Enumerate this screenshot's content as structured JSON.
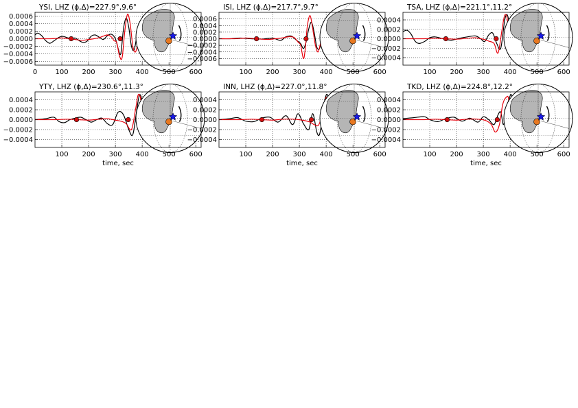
{
  "chart_data": [
    {
      "type": "line",
      "title": "YSI, LHZ (ϕ,Δ)=227.9°,9.6°",
      "xlabel": "",
      "ylabel": "",
      "xlim": [
        0,
        620
      ],
      "ylim": [
        -0.0007,
        0.0007
      ],
      "xticks": [
        0,
        100,
        200,
        300,
        400,
        500,
        600
      ],
      "yticks": [
        -0.0006,
        -0.0004,
        -0.0002,
        0.0,
        0.0002,
        0.0004,
        0.0006
      ],
      "grid": true,
      "series": [
        {
          "color": "#000000",
          "x": [
            0,
            10,
            25,
            40,
            55,
            70,
            90,
            105,
            120,
            135,
            150,
            165,
            180,
            195,
            210,
            225,
            240,
            255,
            270,
            285,
            300,
            310,
            320,
            330,
            340,
            350,
            360,
            370,
            380,
            390,
            400,
            410,
            420,
            430
          ],
          "y": [
            0.0001,
            0.00015,
            8e-05,
            -5e-05,
            -0.00012,
            -6e-05,
            4e-05,
            6e-05,
            3e-05,
            0.0,
            2e-05,
            -5e-05,
            -0.0001,
            -6e-05,
            7e-05,
            0.0001,
            4e-05,
            -2e-05,
            8e-05,
            0.00012,
            0.0,
            -0.00025,
            -0.0004,
            0.00025,
            0.00055,
            0.0003,
            -0.0002,
            -0.0003,
            5e-05,
            0.00015,
            0.0,
            -5e-05,
            2e-05,
            0.0
          ]
        },
        {
          "color": "#e8000b",
          "x": [
            0,
            60,
            100,
            130,
            150,
            175,
            200,
            220,
            240,
            255,
            270,
            285,
            295,
            305,
            315,
            325,
            335,
            345,
            355,
            365,
            375,
            385,
            395,
            405,
            420,
            430
          ],
          "y": [
            0.0,
            0.0,
            2e-05,
            0.0,
            -2e-05,
            -4e-05,
            -2e-05,
            0.0,
            3e-05,
            7e-05,
            0.0001,
            5e-05,
            -5e-05,
            -0.0001,
            -0.00045,
            -0.0005,
            0.0002,
            0.00065,
            0.0004,
            -0.0002,
            -0.00035,
            -0.0001,
            0.0001,
            5e-05,
            0.0,
            0.0
          ]
        }
      ],
      "markers": [
        {
          "x": 135,
          "y": 0.0
        },
        {
          "x": 318,
          "y": 0.0
        }
      ]
    },
    {
      "type": "line",
      "title": "ISI, LHZ (ϕ,Δ)=217.7°,9.7°",
      "xlabel": "",
      "ylabel": "",
      "xlim": [
        0,
        620
      ],
      "ylim": [
        -0.0008,
        0.0008
      ],
      "xticks": [
        100,
        200,
        300,
        400,
        500,
        600
      ],
      "yticks": [
        -0.0006,
        -0.0004,
        -0.0002,
        0.0,
        0.0002,
        0.0004,
        0.0006
      ],
      "grid": true,
      "series": [
        {
          "color": "#000000",
          "x": [
            0,
            40,
            80,
            120,
            160,
            200,
            230,
            250,
            270,
            290,
            305,
            315,
            325,
            335,
            345,
            355,
            365,
            375,
            385,
            395,
            410,
            430
          ],
          "y": [
            0.0,
            0.0,
            2e-05,
            0.0,
            -1e-05,
            2e-05,
            -5e-05,
            6e-05,
            8e-05,
            -5e-05,
            -0.00015,
            -0.0003,
            -0.0001,
            0.0003,
            0.0005,
            0.0002,
            -0.00025,
            -0.0003,
            0.0,
            0.00012,
            0.0,
            0.0
          ]
        },
        {
          "color": "#e8000b",
          "x": [
            0,
            60,
            100,
            140,
            180,
            210,
            240,
            260,
            280,
            295,
            305,
            315,
            322,
            330,
            340,
            350,
            360,
            370,
            380,
            390,
            400,
            415,
            430
          ],
          "y": [
            0.0,
            0.0,
            2e-05,
            0.0,
            -2e-05,
            0.0,
            3e-05,
            6e-05,
            4e-05,
            -0.0001,
            -0.0002,
            -0.0006,
            -0.0003,
            0.0004,
            0.0007,
            0.0003,
            -0.0002,
            -0.0004,
            -0.0001,
            0.00015,
            0.0001,
            0.0,
            0.0
          ]
        }
      ],
      "markers": [
        {
          "x": 140,
          "y": 0.0
        },
        {
          "x": 325,
          "y": 0.0
        }
      ]
    },
    {
      "type": "line",
      "title": "TSA, LHZ (ϕ,Δ)=221.1°,11.2°",
      "xlabel": "",
      "ylabel": "",
      "xlim": [
        0,
        620
      ],
      "ylim": [
        -0.00056,
        0.00056
      ],
      "xticks": [
        100,
        200,
        300,
        400,
        500,
        600
      ],
      "yticks": [
        -0.0004,
        -0.0002,
        0.0,
        0.0002,
        0.0004
      ],
      "grid": true,
      "series": [
        {
          "color": "#000000",
          "x": [
            0,
            15,
            30,
            45,
            60,
            80,
            100,
            120,
            150,
            180,
            210,
            240,
            270,
            290,
            305,
            320,
            335,
            350,
            365,
            380,
            390,
            400,
            410,
            420,
            430,
            440
          ],
          "y": [
            0.00015,
            0.00018,
            0.0001,
            -5e-05,
            -0.0001,
            -6e-05,
            2e-05,
            4e-05,
            0.0,
            -3e-05,
            1e-05,
            4e-05,
            6e-05,
            0.0,
            -6e-05,
            8e-05,
            0.00012,
            -0.0001,
            -0.0002,
            0.0004,
            0.0005,
            0.0002,
            -0.0003,
            -0.0002,
            0.0001,
            0.0
          ]
        },
        {
          "color": "#e8000b",
          "x": [
            0,
            80,
            120,
            160,
            200,
            240,
            270,
            300,
            320,
            340,
            355,
            370,
            380,
            390,
            400,
            410,
            420,
            430,
            440
          ],
          "y": [
            0.0,
            0.0,
            1e-05,
            0.0,
            -1e-05,
            1e-05,
            2e-05,
            -1e-05,
            -5e-05,
            -0.0001,
            -0.0003,
            0.0002,
            0.0005,
            0.0004,
            -0.0002,
            -0.0004,
            -0.0001,
            0.0001,
            0.0
          ]
        }
      ],
      "markers": [
        {
          "x": 160,
          "y": 0.0
        },
        {
          "x": 348,
          "y": 0.0
        }
      ]
    },
    {
      "type": "line",
      "title": "YTY, LHZ (ϕ,Δ)=230.6°,11.3°",
      "xlabel": "time, sec",
      "ylabel": "",
      "xlim": [
        0,
        620
      ],
      "ylim": [
        -0.00056,
        0.00056
      ],
      "xticks": [
        100,
        200,
        300,
        400,
        500,
        600
      ],
      "yticks": [
        -0.0004,
        -0.0002,
        0.0,
        0.0002,
        0.0004
      ],
      "grid": true,
      "series": [
        {
          "color": "#000000",
          "x": [
            0,
            40,
            70,
            90,
            110,
            130,
            150,
            170,
            190,
            210,
            230,
            250,
            270,
            290,
            310,
            330,
            350,
            365,
            380,
            390,
            400,
            410,
            420,
            430,
            440,
            450
          ],
          "y": [
            0.0,
            2e-05,
            5e-05,
            -4e-05,
            -6e-05,
            0.0,
            3e-05,
            5e-05,
            0.0,
            -5e-05,
            0.0,
            3e-05,
            -8e-05,
            -0.0001,
            0.00015,
            0.0001,
            -0.0002,
            -0.0003,
            0.0002,
            0.0005,
            0.00035,
            -0.0002,
            -0.0003,
            0.0,
            0.0001,
            0.0
          ]
        },
        {
          "color": "#e8000b",
          "x": [
            0,
            80,
            120,
            160,
            200,
            240,
            270,
            300,
            320,
            340,
            360,
            375,
            385,
            395,
            405,
            415,
            425,
            440,
            450
          ],
          "y": [
            0.0,
            0.0,
            1e-05,
            0.0,
            -1e-05,
            1e-05,
            2e-05,
            -1e-05,
            -3e-05,
            -8e-05,
            -0.0002,
            0.0002,
            0.0005,
            0.0004,
            -0.0001,
            -0.0004,
            -0.0003,
            0.0001,
            0.0
          ]
        }
      ],
      "markers": [
        {
          "x": 155,
          "y": 0.0
        },
        {
          "x": 348,
          "y": 0.0
        }
      ]
    },
    {
      "type": "line",
      "title": "INN, LHZ (ϕ,Δ)=227.0°,11.8°",
      "xlabel": "time, sec",
      "ylabel": "",
      "xlim": [
        0,
        620
      ],
      "ylim": [
        -0.00056,
        0.00056
      ],
      "xticks": [
        100,
        200,
        300,
        400,
        500,
        600
      ],
      "yticks": [
        -0.0004,
        -0.0002,
        0.0,
        0.0002,
        0.0004
      ],
      "grid": true,
      "series": [
        {
          "color": "#000000",
          "x": [
            0,
            40,
            70,
            100,
            130,
            160,
            190,
            220,
            250,
            275,
            295,
            315,
            335,
            350,
            365,
            375,
            385,
            395,
            405,
            415,
            425,
            435,
            445,
            455
          ],
          "y": [
            0.0,
            2e-05,
            4e-05,
            -3e-05,
            -4e-05,
            3e-05,
            5e-05,
            -5e-05,
            8e-05,
            -0.0001,
            0.00012,
            -8e-05,
            -0.0002,
            0.00012,
            -0.00025,
            -0.0003,
            0.0,
            0.0004,
            0.0005,
            0.0002,
            -0.0002,
            -0.00025,
            0.0,
            0.0
          ]
        },
        {
          "color": "#e8000b",
          "x": [
            0,
            80,
            120,
            160,
            200,
            240,
            280,
            320,
            340,
            355,
            370,
            380,
            390,
            400,
            410,
            420,
            430,
            445,
            455
          ],
          "y": [
            0.0,
            0.0,
            1e-05,
            0.0,
            -1e-05,
            1e-05,
            1e-05,
            -2e-05,
            -5e-05,
            -0.0001,
            -0.00012,
            0.0,
            0.0002,
            0.00045,
            0.0003,
            -0.0003,
            -0.0004,
            0.0,
            0.0
          ]
        }
      ],
      "markers": [
        {
          "x": 160,
          "y": 0.0
        },
        {
          "x": 345,
          "y": 0.0
        }
      ]
    },
    {
      "type": "line",
      "title": "TKD, LHZ (ϕ,Δ)=224.8°,12.2°",
      "xlabel": "time, sec",
      "ylabel": "",
      "xlim": [
        0,
        620
      ],
      "ylim": [
        -0.00056,
        0.00056
      ],
      "xticks": [
        100,
        200,
        300,
        400,
        500,
        600
      ],
      "yticks": [
        -0.0004,
        -0.0002,
        0.0,
        0.0002,
        0.0004
      ],
      "grid": true,
      "series": [
        {
          "color": "#000000",
          "x": [
            0,
            40,
            80,
            100,
            130,
            160,
            190,
            220,
            250,
            280,
            300,
            320,
            340,
            355,
            365,
            375,
            385,
            395,
            405,
            415,
            425,
            435,
            445,
            455
          ],
          "y": [
            2e-05,
            4e-05,
            6e-05,
            0.0,
            -4e-05,
            2e-05,
            5e-05,
            -3e-05,
            3e-05,
            -5e-05,
            6e-05,
            0.0,
            -0.0001,
            0.0001,
            0.00015,
            -0.0001,
            0.00018,
            0.0004,
            0.0005,
            0.0002,
            -0.0002,
            -0.00015,
            0.0,
            0.0
          ]
        },
        {
          "color": "#e8000b",
          "x": [
            0,
            80,
            120,
            160,
            200,
            240,
            280,
            310,
            330,
            345,
            360,
            372,
            385,
            395,
            405,
            415,
            425,
            440,
            455
          ],
          "y": [
            0.0,
            0.0,
            1e-05,
            0.0,
            -1e-05,
            1e-05,
            1e-05,
            -2e-05,
            -0.0001,
            -0.00025,
            -0.0001,
            0.0003,
            0.00045,
            0.0004,
            -0.0002,
            -0.0004,
            -0.0002,
            0.0001,
            0.0
          ]
        }
      ],
      "markers": [
        {
          "x": 165,
          "y": 0.0
        },
        {
          "x": 352,
          "y": 0.0
        }
      ]
    }
  ],
  "colors": {
    "observed": "#000000",
    "synthetic": "#e8000b",
    "marker": "#d01010",
    "globe_land": "#b5b5b5",
    "star": "#1a1ae6",
    "event_dot": "#e87820"
  },
  "icons": {
    "globe": "globe-inset-icon",
    "station": "station-star-icon"
  }
}
